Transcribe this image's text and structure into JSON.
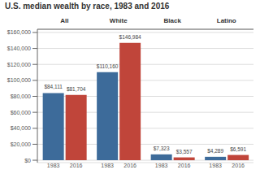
{
  "chart_data": {
    "type": "bar",
    "title": "U.S. median wealth by race, 1983 and 2016",
    "categories": [
      "All",
      "White",
      "Black",
      "Latino"
    ],
    "series": [
      {
        "name": "1983",
        "color": "#3d6b9a",
        "values": [
          84111,
          110160,
          7323,
          4289
        ],
        "value_labels": [
          "$84,111",
          "$110,160",
          "$7,323",
          "$4,289"
        ]
      },
      {
        "name": "2016",
        "color": "#c0453a",
        "values": [
          81704,
          146984,
          3557,
          6591
        ],
        "value_labels": [
          "$81,704",
          "$146,984",
          "$3,557",
          "$6,591"
        ]
      }
    ],
    "ylim": [
      -3000,
      164000
    ],
    "yticks": [
      {
        "value": 0,
        "label": "$0"
      },
      {
        "value": 20000,
        "label": "$20,000"
      },
      {
        "value": 40000,
        "label": "$40,000"
      },
      {
        "value": 60000,
        "label": "$60,000"
      },
      {
        "value": 80000,
        "label": "$80,000"
      },
      {
        "value": 100000,
        "label": "$100,000"
      },
      {
        "value": 120000,
        "label": "$120,000"
      },
      {
        "value": 140000,
        "label": "$140,000"
      },
      {
        "value": 160000,
        "label": "$160,000"
      }
    ],
    "grid": true,
    "data_labels": true
  }
}
